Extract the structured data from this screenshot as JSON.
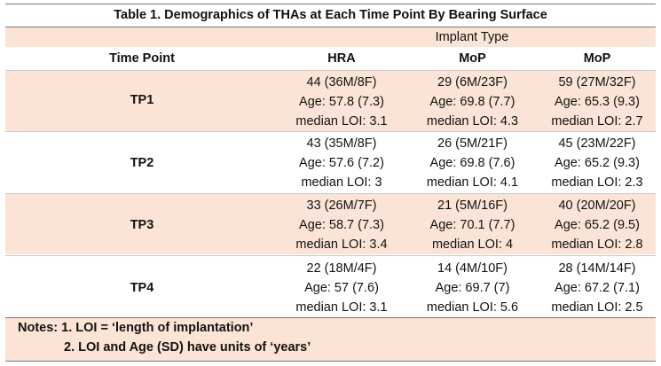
{
  "title": "Table 1. Demographics of THAs at Each Time Point By Bearing Surface",
  "group_header": "Implant Type",
  "columns": [
    "Time Point",
    "HRA",
    "MoP",
    "MoP"
  ],
  "rows": [
    {
      "label": "TP1",
      "cells": [
        [
          "44 (36M/8F)",
          "Age: 57.8 (7.3)",
          "median LOI: 3.1"
        ],
        [
          "29 (6M/23F)",
          "Age: 69.8 (7.7)",
          "median LOI: 4.3"
        ],
        [
          "59 (27M/32F)",
          "Age: 65.3 (9.3)",
          "median LOI: 2.7"
        ]
      ]
    },
    {
      "label": "TP2",
      "cells": [
        [
          "43 (35M/8F)",
          "Age: 57.6 (7.2)",
          "median LOI: 3"
        ],
        [
          "26 (5M/21F)",
          "Age: 69.8 (7.6)",
          "median LOI: 4.1"
        ],
        [
          "45 (23M/22F)",
          "Age: 65.2 (9.3)",
          "median LOI: 2.3"
        ]
      ]
    },
    {
      "label": "TP3",
      "cells": [
        [
          "33 (26M/7F)",
          "Age: 58.7 (7.3)",
          "median LOI: 3.4"
        ],
        [
          "21 (5M/16F)",
          "Age: 70.1 (7.7)",
          "median LOI: 4"
        ],
        [
          "40 (20M/20F)",
          "Age: 65.2 (9.5)",
          "median LOI: 2.8"
        ]
      ]
    },
    {
      "label": "TP4",
      "cells": [
        [
          "22 (18M/4F)",
          "Age: 57 (7.6)",
          "median LOI: 3.1"
        ],
        [
          "14 (4M/10F)",
          "Age: 69.7 (7)",
          "median LOI: 5.6"
        ],
        [
          "28 (14M/14F)",
          "Age: 67.2 (7.1)",
          "median LOI: 2.5"
        ]
      ]
    }
  ],
  "notes": [
    "Notes: 1. LOI = ‘length of implantation’",
    "2. LOI and Age (SD) have units of ‘years’"
  ],
  "colors": {
    "band": "#fbe4d5",
    "rule": "#7a7a7a"
  }
}
